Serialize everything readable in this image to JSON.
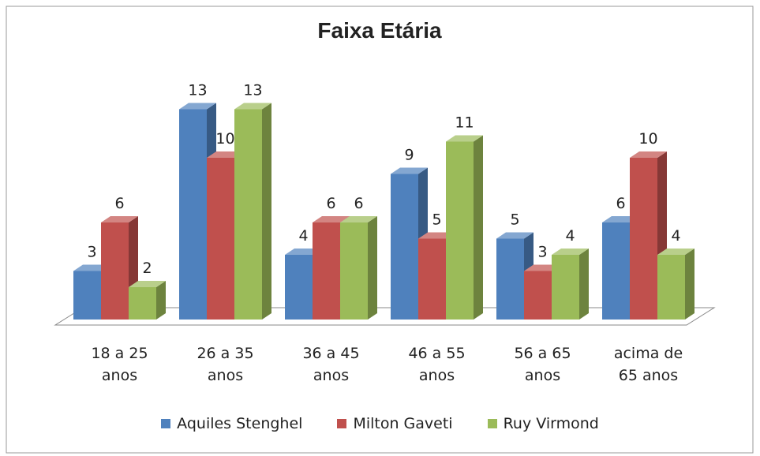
{
  "chart_data": {
    "type": "bar3d",
    "title": "Faixa Etária",
    "categories": [
      "18 a 25 anos",
      "26 a 35 anos",
      "36 a 45 anos",
      "46 a 55 anos",
      "56 a 65 anos",
      "acima de 65 anos"
    ],
    "series": [
      {
        "name": "Aquiles Stenghel",
        "color": "#4f81bd",
        "values": [
          3,
          13,
          4,
          9,
          5,
          6
        ]
      },
      {
        "name": "Milton Gaveti",
        "color": "#c0504d",
        "values": [
          6,
          10,
          6,
          5,
          3,
          10
        ]
      },
      {
        "name": "Ruy Virmond",
        "color": "#9bbb59",
        "values": [
          2,
          13,
          6,
          11,
          4,
          4
        ]
      }
    ],
    "legend": "bottom"
  }
}
